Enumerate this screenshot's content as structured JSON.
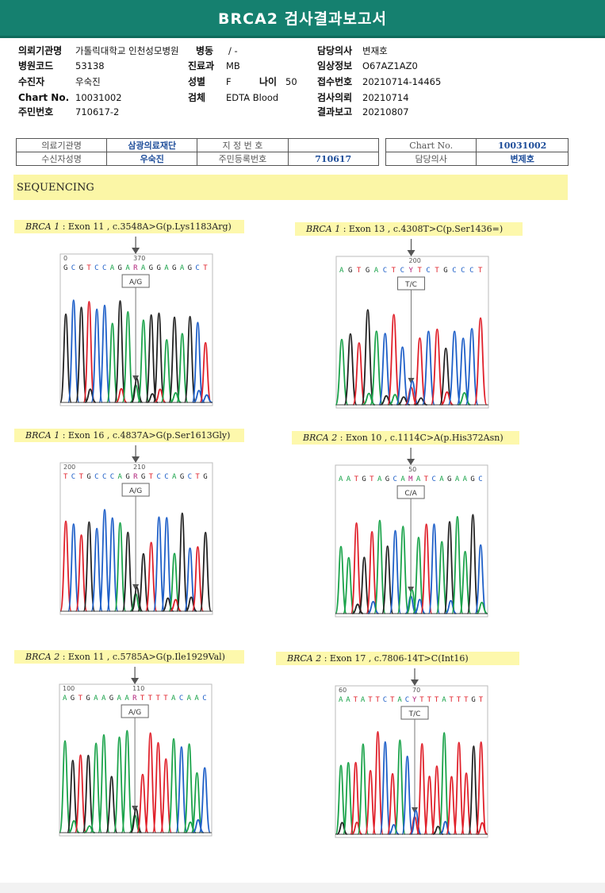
{
  "title": "BRCA2 검사결과보고서",
  "patient": {
    "institution_label": "의뢰기관명",
    "institution": "가톨릭대학교 인천성모병원",
    "ward_label": "병동",
    "ward": "/ -",
    "doctor_label": "담당의사",
    "doctor": "변재호",
    "hospital_code_label": "병원코드",
    "hospital_code": "53138",
    "department_label": "진료과",
    "department": "MB",
    "clinical_info_label": "임상정보",
    "clinical_info": "O67AZ1AZ0",
    "recipient_label": "수진자",
    "recipient": "우숙진",
    "sex_label": "성별",
    "sex": "F",
    "age_label": "나이",
    "age": "50",
    "receipt_no_label": "접수번호",
    "receipt_no": "20210714-14465",
    "chart_no_label": "Chart No.",
    "chart_no": "10031002",
    "specimen_label": "검체",
    "specimen": "EDTA Blood",
    "test_request_label": "검사의뢰",
    "test_request": "20210714",
    "resident_no_label": "주민번호",
    "resident_no": "710617-2",
    "result_report_label": "결과보고",
    "result_report": "20210807"
  },
  "form": {
    "institution_label": "의료기관명",
    "institution": "삼광의료재단",
    "designation_label": "지 정 번 호",
    "designation": "",
    "chart_label": "Chart No.",
    "chart": "10031002",
    "name_label": "수신자성명",
    "name": "우숙진",
    "resident_label": "주민등록번호",
    "resident": "710617",
    "doctor_label": "담당의사",
    "doctor": "변제호"
  },
  "section": "SEQUENCING",
  "colors": {
    "A": "#1aa34a",
    "C": "#1e5fc8",
    "G": "#222222",
    "T": "#e0202a",
    "header": "#15806f",
    "highlight": "#fdf8ac"
  },
  "variants": [
    {
      "gene": "BRCA 1",
      "desc": " : Exon 11 , c.3548A>G(p.Lys1183Arg)",
      "seq": "GCGTCCAGARAGGAGAGCT",
      "tick1": "0",
      "tick2": "370",
      "call": "A/G",
      "het": "R"
    },
    {
      "gene": "BRCA 1",
      "desc": " : Exon 13 , c.4308T>C(p.Ser1436=)",
      "seq": "AGTGACTCYTCTGCCCT",
      "tick1": "",
      "tick2": "200",
      "call": "T/C",
      "het": "Y"
    },
    {
      "gene": "BRCA 1",
      "desc": " : Exon 16 , c.4837A>G(p.Ser1613Gly)",
      "seq": "TCTGCCCAGRGTCCAGCTG",
      "tick1": "200",
      "tick2": "210",
      "call": "A/G",
      "het": "R"
    },
    {
      "gene": "BRCA 2",
      "desc": " : Exon 10 , c.1114C>A(p.His372Asn)",
      "seq": "AATGTAGCAMATCAGAAGC",
      "tick1": "",
      "tick2": "50",
      "call": "C/A",
      "het": "M"
    },
    {
      "gene": "BRCA 2",
      "desc": " : Exon 11 , c.5785A>G(p.Ile1929Val)",
      "seq": "AGTGAAGAARTTTTACAAC",
      "tick1": "100",
      "tick2": "110",
      "call": "A/G",
      "het": "R"
    },
    {
      "gene": "BRCA 2",
      "desc": " : Exon 17 , c.7806-14T>C(Int16)",
      "seq": "AATATTCTACYTTTATTTGT",
      "tick1": "60",
      "tick2": "70",
      "call": "T/C",
      "het": "Y"
    }
  ]
}
